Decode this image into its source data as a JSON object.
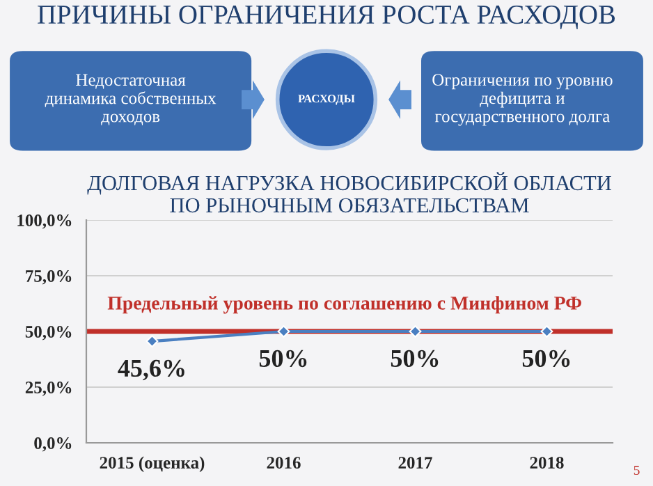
{
  "chart_data": {
    "type": "line",
    "title": "ДОЛГОВАЯ НАГРУЗКА НОВОСИБИРСКОЙ ОБЛАСТИ\nПО РЫНОЧНЫМ ОБЯЗАТЕЛЬСТВАМ",
    "categories": [
      "2015 (оценка)",
      "2016",
      "2017",
      "2018"
    ],
    "series": [
      {
        "color": "#4a7fc1",
        "values": [
          45.6,
          50,
          50,
          50
        ],
        "value_labels": [
          "45,6%",
          "50%",
          "50%",
          "50%"
        ]
      }
    ],
    "ylim": [
      0,
      100
    ],
    "yticks": [
      {
        "value": 0,
        "label": "0,0%"
      },
      {
        "value": 25,
        "label": "25,0%"
      },
      {
        "value": 50,
        "label": "50,0%"
      },
      {
        "value": 75,
        "label": "75,0%"
      },
      {
        "value": 100,
        "label": "100,0%"
      }
    ],
    "ref_lines": [
      {
        "axis": "y",
        "value": 50,
        "label": "Предельный уровень по соглашению с Минфином РФ",
        "color": "#c0302a"
      }
    ],
    "grid": "y",
    "marker": "diamond",
    "line_style": "solid",
    "legend": false,
    "annotations": [
      "ПРИЧИНЫ ОГРАНИЧЕНИЯ РОСТА РАСХОДОВ",
      "Недостаточная\nдинамика собственных\nдоходов",
      "РАСХОДЫ",
      "Ограничения по уровню\nдефицита и\nгосударственного долга",
      "5"
    ]
  }
}
